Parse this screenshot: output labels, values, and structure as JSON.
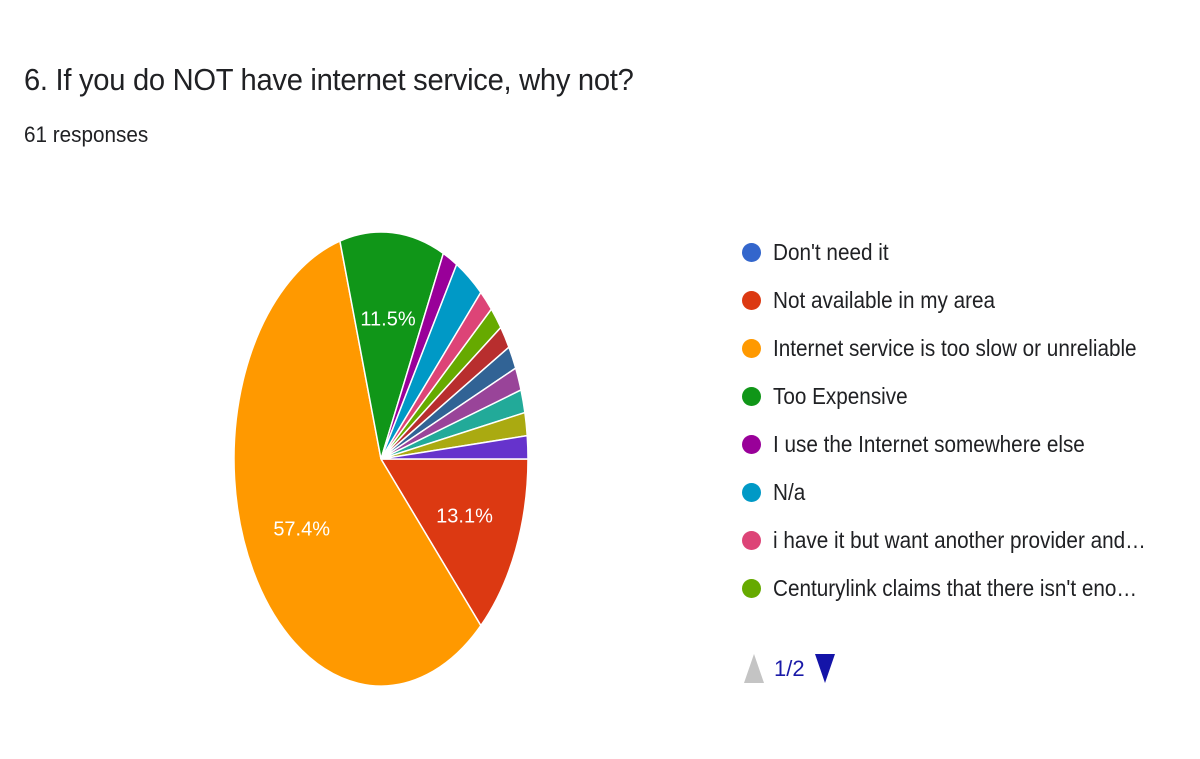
{
  "header": {
    "title": "6. If you do NOT have internet service, why not?",
    "responses": "61 responses"
  },
  "legend": {
    "items": [
      {
        "label": "Don't need it",
        "color": "#3366cc"
      },
      {
        "label": "Not available in my area",
        "color": "#dc3912"
      },
      {
        "label": "Internet service is too slow or unreliable",
        "color": "#ff9900"
      },
      {
        "label": "Too Expensive",
        "color": "#109618"
      },
      {
        "label": "I use the Internet somewhere else",
        "color": "#990099"
      },
      {
        "label": "N/a",
        "color": "#0099c6"
      },
      {
        "label": "i have it but want another provider and…",
        "color": "#dd4477"
      },
      {
        "label": "Centurylink claims that there isn't eno…",
        "color": "#66aa00"
      }
    ],
    "page": "1/2"
  },
  "chart_data": {
    "type": "pie",
    "title": "6. If you do NOT have internet service, why not?",
    "total_responses": 61,
    "slices": [
      {
        "label": "Don't need it",
        "value": 0,
        "percent_label": "",
        "color": "#3366cc"
      },
      {
        "label": "Not available in my area",
        "value": 8,
        "percent_label": "13.1%",
        "color": "#dc3912"
      },
      {
        "label": "Internet service is too slow or unreliable",
        "value": 35,
        "percent_label": "57.4%",
        "color": "#ff9900"
      },
      {
        "label": "Too Expensive",
        "value": 7,
        "percent_label": "11.5%",
        "color": "#109618"
      },
      {
        "label": "I use the Internet somewhere else",
        "value": 1,
        "percent_label": "",
        "color": "#990099"
      },
      {
        "label": "N/a",
        "value": 2,
        "percent_label": "",
        "color": "#0099c6"
      },
      {
        "label": "i have it but want another provider and…",
        "value": 1,
        "percent_label": "",
        "color": "#dd4477"
      },
      {
        "label": "Centurylink claims that there isn't eno…",
        "value": 1,
        "percent_label": "",
        "color": "#66aa00"
      },
      {
        "label": "",
        "value": 1,
        "percent_label": "",
        "color": "#b82e2e"
      },
      {
        "label": "",
        "value": 1,
        "percent_label": "",
        "color": "#316395"
      },
      {
        "label": "",
        "value": 1,
        "percent_label": "",
        "color": "#994499"
      },
      {
        "label": "",
        "value": 1,
        "percent_label": "",
        "color": "#22aa99"
      },
      {
        "label": "",
        "value": 1,
        "percent_label": "",
        "color": "#aaaa11"
      },
      {
        "label": "",
        "value": 1,
        "percent_label": "",
        "color": "#6633cc"
      }
    ],
    "start": "3 o'clock, clockwise",
    "legend_position": "right"
  }
}
